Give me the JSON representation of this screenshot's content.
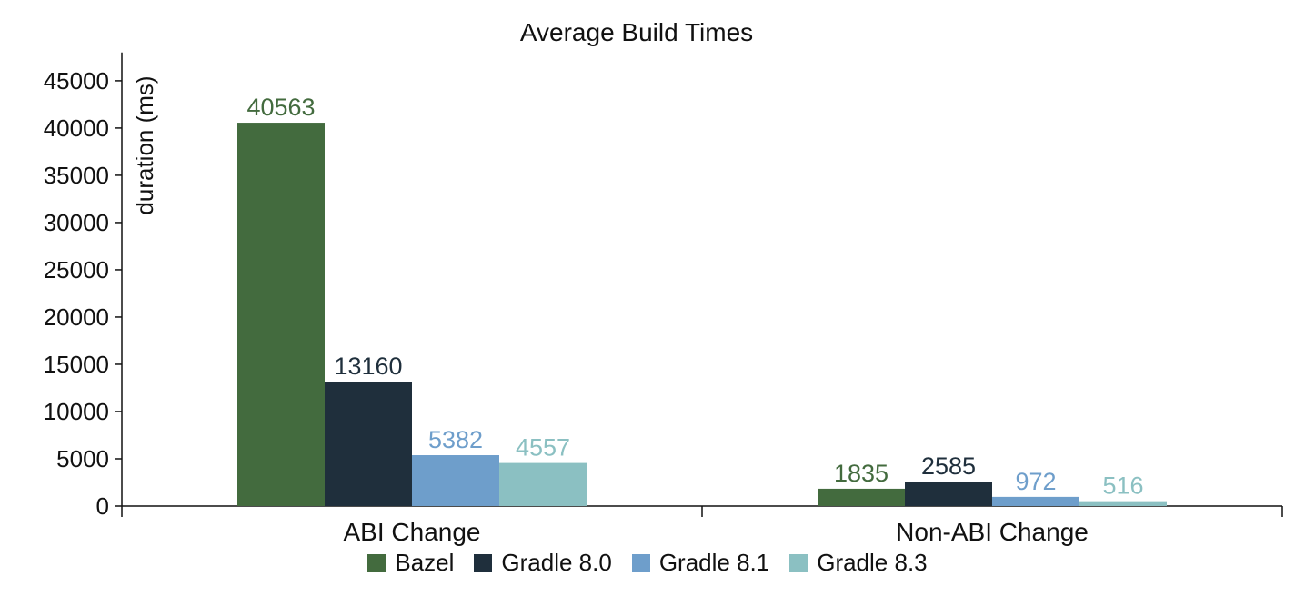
{
  "chart_data": {
    "type": "bar",
    "title": "Average Build Times",
    "ylabel": "duration (ms)",
    "xlabel": "",
    "ylim": [
      0,
      48000
    ],
    "yticks": [
      0,
      5000,
      10000,
      15000,
      20000,
      25000,
      30000,
      35000,
      40000,
      45000
    ],
    "categories": [
      "ABI Change",
      "Non-ABI Change"
    ],
    "series": [
      {
        "name": "Bazel",
        "color": "#436b3e",
        "values": [
          40563,
          1835
        ]
      },
      {
        "name": "Gradle 8.0",
        "color": "#1f2f3c",
        "values": [
          13160,
          2585
        ]
      },
      {
        "name": "Gradle 8.1",
        "color": "#6e9ecb",
        "values": [
          5382,
          972
        ]
      },
      {
        "name": "Gradle 8.3",
        "color": "#8bc0c2",
        "values": [
          4557,
          516
        ]
      }
    ],
    "legend_position": "bottom",
    "grid": false
  }
}
